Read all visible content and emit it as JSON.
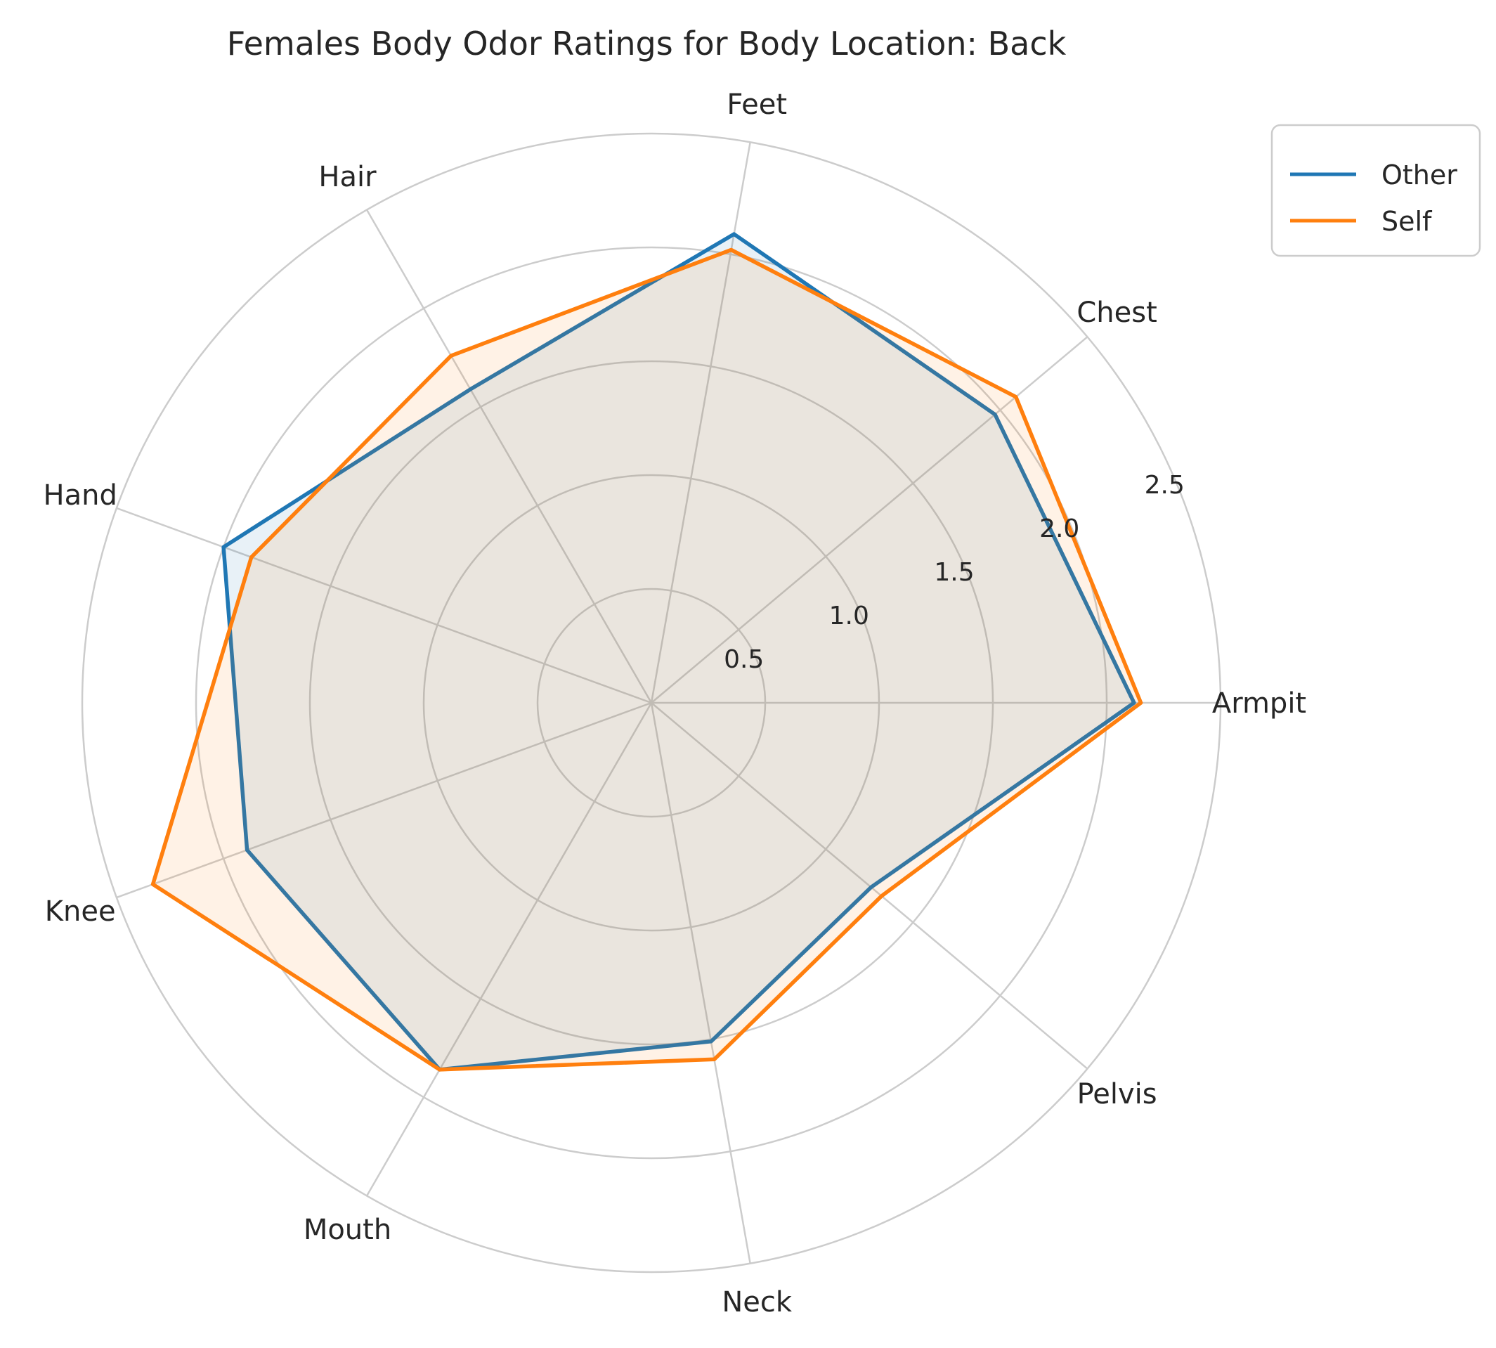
{
  "chart_data": {
    "type": "radar",
    "title": "Females Body Odor Ratings for Body Location: Back",
    "categories": [
      "Armpit",
      "Chest",
      "Feet",
      "Hair",
      "Hand",
      "Knee",
      "Mouth",
      "Neck",
      "Pelvis"
    ],
    "series": [
      {
        "name": "Other",
        "color": "#1f77b4",
        "values": [
          2.12,
          1.97,
          2.09,
          1.59,
          2.0,
          1.89,
          1.86,
          1.51,
          1.26
        ]
      },
      {
        "name": "Self",
        "color": "#ff7f0e",
        "values": [
          2.15,
          2.09,
          2.02,
          1.76,
          1.87,
          2.33,
          1.86,
          1.59,
          1.32
        ]
      }
    ],
    "radial_ticks": [
      "0.5",
      "1.0",
      "1.5",
      "2.0",
      "2.5"
    ],
    "rlim": [
      0,
      2.5
    ],
    "grid": true,
    "legend_position": "top-right"
  }
}
